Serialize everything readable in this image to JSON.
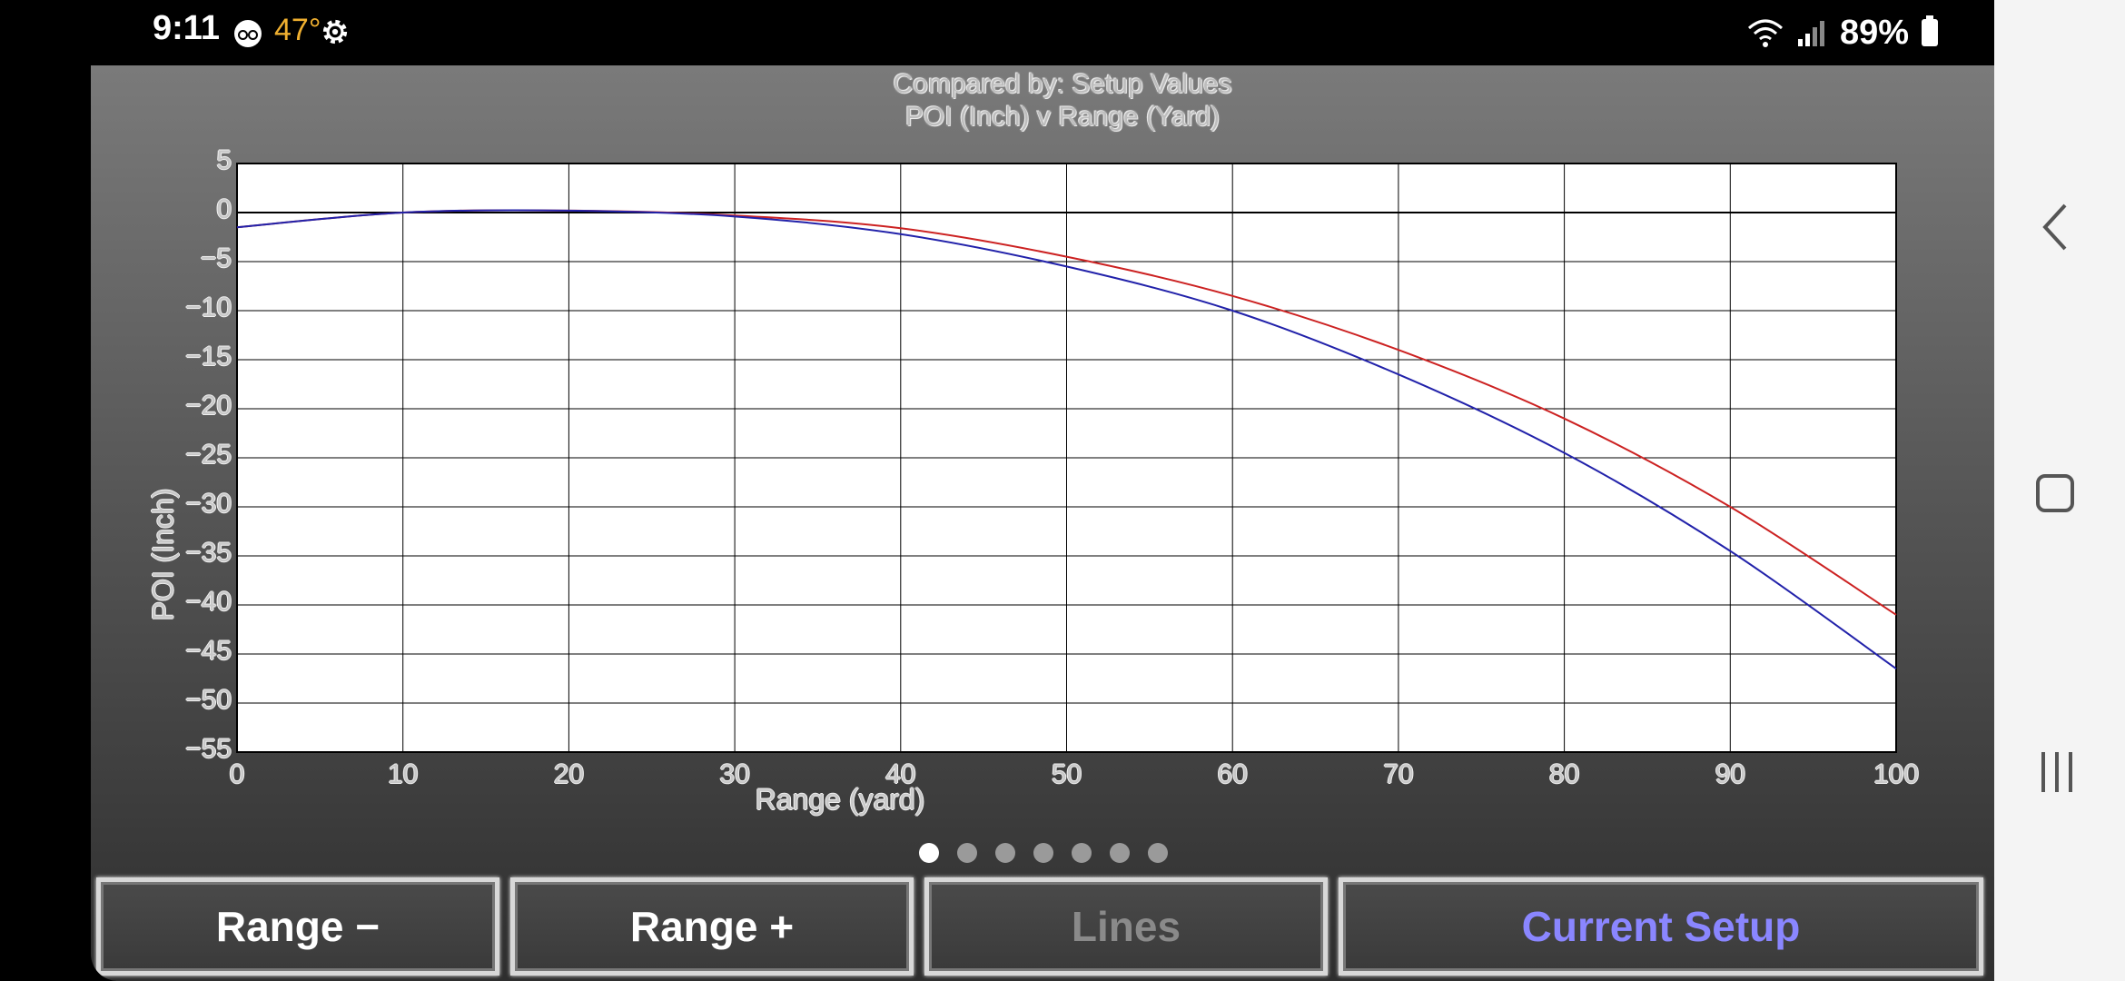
{
  "status_bar": {
    "time": "9:11",
    "temperature": "47°",
    "battery": "89%",
    "icons": [
      "voicemail-icon",
      "gear-icon",
      "wifi-icon",
      "signal-icon",
      "battery-icon"
    ]
  },
  "chart_data": {
    "type": "line",
    "title": "Compared by: Setup Values",
    "subtitle": "POI (Inch) v Range (Yard)",
    "xlabel": "Range (yard)",
    "ylabel": "POI (Inch)",
    "xlim": [
      0,
      100
    ],
    "ylim": [
      -55,
      5
    ],
    "x_ticks": [
      "0",
      "10",
      "20",
      "30",
      "40",
      "50",
      "60",
      "70",
      "80",
      "90",
      "100"
    ],
    "y_ticks": [
      "5",
      "0",
      "−5",
      "−10",
      "−15",
      "−20",
      "−25",
      "−30",
      "−35",
      "−40",
      "−45",
      "−50",
      "−55"
    ],
    "grid": true,
    "x": [
      0,
      10,
      20,
      30,
      40,
      50,
      60,
      70,
      80,
      90,
      100
    ],
    "series": [
      {
        "color": "#cc2222",
        "values": [
          -1.5,
          0,
          0.2,
          -0.3,
          -1.6,
          -4.5,
          -8.5,
          -14,
          -21,
          -30,
          -41
        ]
      },
      {
        "color": "#2222aa",
        "values": [
          -1.5,
          0,
          0.2,
          -0.4,
          -2.2,
          -5.5,
          -10,
          -16.5,
          -24.5,
          -34.5,
          -46.5
        ]
      }
    ]
  },
  "pager": {
    "count": 7,
    "active": 0
  },
  "buttons": {
    "range_minus": "Range −",
    "range_plus": "Range +",
    "lines": "Lines",
    "current_setup": "Current Setup"
  },
  "colors": {
    "accent": "#8a86ff",
    "disabled": "#8a8a8a"
  }
}
